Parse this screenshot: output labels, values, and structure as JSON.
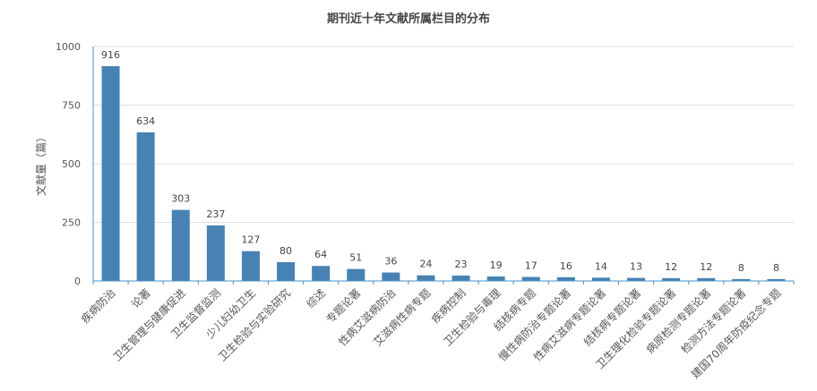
{
  "chart_data": {
    "type": "bar",
    "title": "期刊近十年文献所属栏目的分布",
    "xlabel": "",
    "ylabel": "文献量（篇）",
    "ylim": [
      0,
      1000
    ],
    "yticks": [
      0,
      250,
      500,
      750,
      1000
    ],
    "grid": true,
    "legend": "none",
    "colors": {
      "bar": "#4682b4",
      "grid": "#e0e0e0",
      "axis": "#4a90c8",
      "text": "#555555"
    },
    "categories": [
      "疾病防治",
      "论著",
      "卫生管理与健康促进",
      "卫生监督监测",
      "少儿妇幼卫生",
      "卫生检验与实验研究",
      "综述",
      "专题论著",
      "性病艾滋病防治",
      "艾滋病性病专题",
      "疾病控制",
      "卫生检验与毒理",
      "结核病专题",
      "慢性病防治专题论著",
      "性病艾滋病专题论著",
      "结核病专题论著",
      "卫生理化检验专题论著",
      "病原检测专题论著",
      "检测方法专题论著",
      "建国70周年防疫纪念专题"
    ],
    "values": [
      916,
      634,
      303,
      237,
      127,
      80,
      64,
      51,
      36,
      24,
      23,
      19,
      17,
      16,
      14,
      13,
      12,
      12,
      8,
      8
    ]
  }
}
